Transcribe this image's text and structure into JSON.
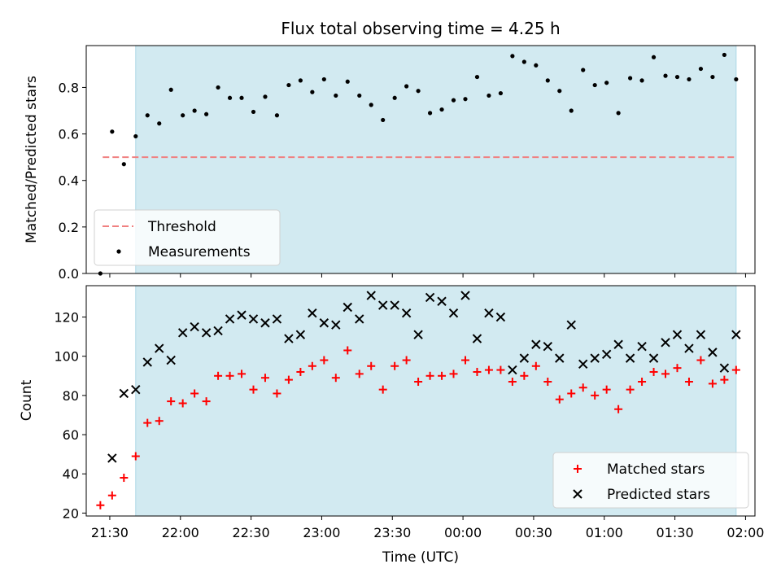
{
  "colors": {
    "band": "#add8e6",
    "threshold": "#f08080",
    "measurement": "#000000",
    "matched": "#ff0000",
    "predicted": "#000000"
  },
  "chart_data": [
    {
      "type": "scatter",
      "title": "Flux total observing time = 4.25 h",
      "xlabel": "",
      "ylabel": "Matched/Predicted stars",
      "ylim": [
        0,
        0.98
      ],
      "yticks": [
        "0.0",
        "0.2",
        "0.4",
        "0.6",
        "0.8"
      ],
      "shaded_band": {
        "x_start": "21:41",
        "x_end": "01:56"
      },
      "threshold": {
        "name": "Threshold",
        "value": 0.5,
        "x_start": "21:27",
        "x_end": "01:56"
      },
      "legend": {
        "position": "lower-left",
        "entries": [
          "Threshold",
          "Measurements"
        ]
      },
      "series": [
        {
          "name": "Measurements",
          "x": [
            "21:26",
            "21:31",
            "21:36",
            "21:41",
            "21:46",
            "21:51",
            "21:56",
            "22:01",
            "22:06",
            "22:11",
            "22:16",
            "22:21",
            "22:26",
            "22:31",
            "22:36",
            "22:41",
            "22:46",
            "22:51",
            "22:56",
            "23:01",
            "23:06",
            "23:11",
            "23:16",
            "23:21",
            "23:26",
            "23:31",
            "23:36",
            "23:41",
            "23:46",
            "23:51",
            "23:56",
            "00:01",
            "00:06",
            "00:11",
            "00:16",
            "00:21",
            "00:26",
            "00:31",
            "00:36",
            "00:41",
            "00:46",
            "00:51",
            "00:56",
            "01:01",
            "01:06",
            "01:11",
            "01:16",
            "01:21",
            "01:26",
            "01:31",
            "01:36",
            "01:41",
            "01:46",
            "01:51",
            "01:56"
          ],
          "y": [
            0.0,
            0.61,
            0.47,
            0.59,
            0.68,
            0.645,
            0.79,
            0.68,
            0.7,
            0.685,
            0.8,
            0.755,
            0.755,
            0.695,
            0.76,
            0.68,
            0.81,
            0.83,
            0.78,
            0.835,
            0.765,
            0.825,
            0.765,
            0.725,
            0.66,
            0.755,
            0.805,
            0.785,
            0.69,
            0.705,
            0.745,
            0.75,
            0.845,
            0.765,
            0.775,
            0.935,
            0.91,
            0.895,
            0.83,
            0.785,
            0.7,
            0.875,
            0.81,
            0.82,
            0.69,
            0.84,
            0.83,
            0.93,
            0.85,
            0.845,
            0.835,
            0.88,
            0.845,
            0.94,
            0.835
          ]
        }
      ]
    },
    {
      "type": "scatter",
      "title": "",
      "xlabel": "Time (UTC)",
      "ylabel": "Count",
      "ylim": [
        18.5,
        136
      ],
      "yticks": [
        "20",
        "40",
        "60",
        "80",
        "100",
        "120"
      ],
      "xticks": [
        "21:30",
        "22:00",
        "22:30",
        "23:00",
        "23:30",
        "00:00",
        "00:30",
        "01:00",
        "01:30",
        "02:00"
      ],
      "shaded_band": {
        "x_start": "21:41",
        "x_end": "01:56"
      },
      "legend": {
        "position": "lower-right",
        "entries": [
          "Matched stars",
          "Predicted stars"
        ]
      },
      "series": [
        {
          "name": "Matched stars",
          "marker": "plus",
          "x": [
            "21:26",
            "21:31",
            "21:36",
            "21:41",
            "21:46",
            "21:51",
            "21:56",
            "22:01",
            "22:06",
            "22:11",
            "22:16",
            "22:21",
            "22:26",
            "22:31",
            "22:36",
            "22:41",
            "22:46",
            "22:51",
            "22:56",
            "23:01",
            "23:06",
            "23:11",
            "23:16",
            "23:21",
            "23:26",
            "23:31",
            "23:36",
            "23:41",
            "23:46",
            "23:51",
            "23:56",
            "00:01",
            "00:06",
            "00:11",
            "00:16",
            "00:21",
            "00:26",
            "00:31",
            "00:36",
            "00:41",
            "00:46",
            "00:51",
            "00:56",
            "01:01",
            "01:06",
            "01:11",
            "01:16",
            "01:21",
            "01:26",
            "01:31",
            "01:36",
            "01:41",
            "01:46",
            "01:51",
            "01:56"
          ],
          "y": [
            24,
            29,
            38,
            49,
            66,
            67,
            77,
            76,
            81,
            77,
            90,
            90,
            91,
            83,
            89,
            81,
            88,
            92,
            95,
            98,
            89,
            103,
            91,
            95,
            83,
            95,
            98,
            87,
            90,
            90,
            91,
            98,
            92,
            93,
            93,
            87,
            90,
            95,
            87,
            78,
            81,
            84,
            80,
            83,
            73,
            83,
            87,
            92,
            91,
            94,
            87,
            98,
            86,
            88,
            93
          ]
        },
        {
          "name": "Predicted stars",
          "marker": "x",
          "x": [
            "21:31",
            "21:36",
            "21:41",
            "21:46",
            "21:51",
            "21:56",
            "22:01",
            "22:06",
            "22:11",
            "22:16",
            "22:21",
            "22:26",
            "22:31",
            "22:36",
            "22:41",
            "22:46",
            "22:51",
            "22:56",
            "23:01",
            "23:06",
            "23:11",
            "23:16",
            "23:21",
            "23:26",
            "23:31",
            "23:36",
            "23:41",
            "23:46",
            "23:51",
            "23:56",
            "00:01",
            "00:06",
            "00:11",
            "00:16",
            "00:21",
            "00:26",
            "00:31",
            "00:36",
            "00:41",
            "00:46",
            "00:51",
            "00:56",
            "01:01",
            "01:06",
            "01:11",
            "01:16",
            "01:21",
            "01:26",
            "01:31",
            "01:36",
            "01:41",
            "01:46",
            "01:51",
            "01:56"
          ],
          "y": [
            48,
            81,
            83,
            97,
            104,
            98,
            112,
            115,
            112,
            113,
            119,
            121,
            119,
            117,
            119,
            109,
            111,
            122,
            117,
            116,
            125,
            119,
            131,
            126,
            126,
            122,
            111,
            130,
            128,
            122,
            131,
            109,
            122,
            120,
            93,
            99,
            106,
            105,
            99,
            116,
            96,
            99,
            101,
            106,
            99,
            105,
            99,
            107,
            111,
            104,
            111,
            102,
            94,
            111
          ]
        }
      ]
    }
  ]
}
